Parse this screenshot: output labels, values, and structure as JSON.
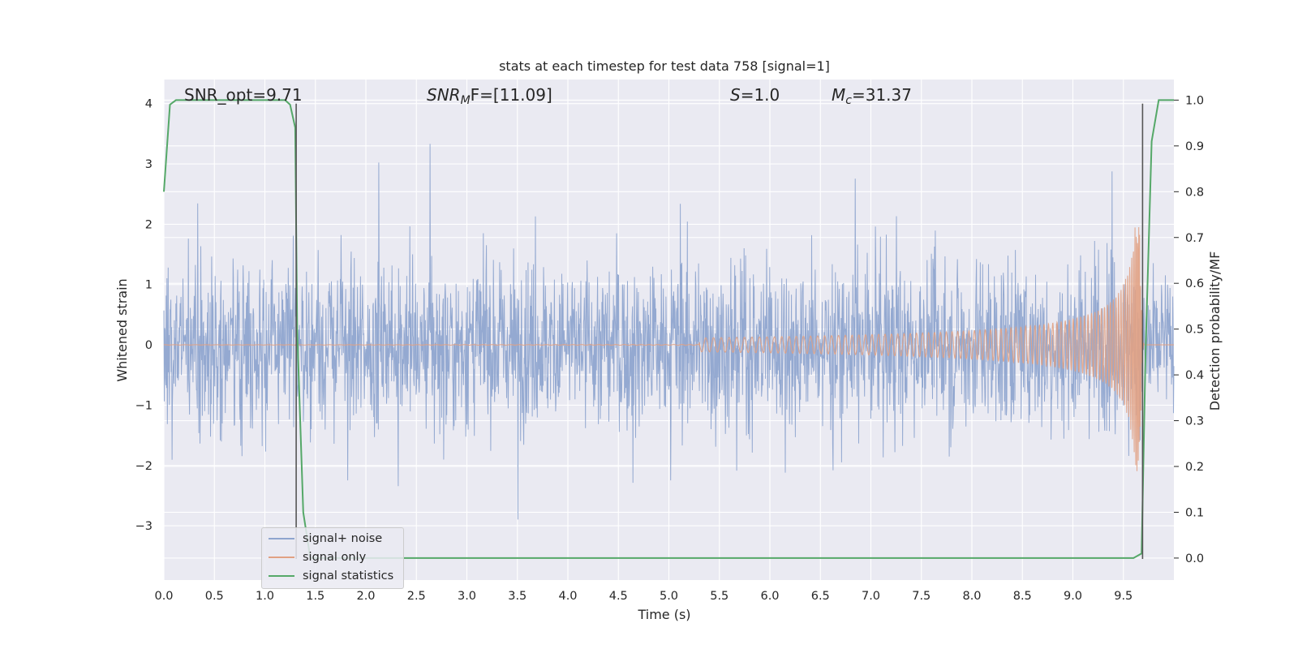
{
  "chart_data": {
    "type": "line",
    "title": "stats at each timestep for test data 758 [signal=1]",
    "xlabel": "Time (s)",
    "ylabel_left": "Whitened strain",
    "ylabel_right": "Detection probability/MF",
    "xlim": [
      0.0,
      10.0
    ],
    "ylim_left": [
      -3.9,
      4.4
    ],
    "ylim_right": [
      -0.048,
      1.045
    ],
    "x_ticks": [
      "0.0",
      "0.5",
      "1.0",
      "1.5",
      "2.0",
      "2.5",
      "3.0",
      "3.5",
      "4.0",
      "4.5",
      "5.0",
      "5.5",
      "6.0",
      "6.5",
      "7.0",
      "7.5",
      "8.0",
      "8.5",
      "9.0",
      "9.5"
    ],
    "y_ticks_left": [
      "4",
      "3",
      "2",
      "1",
      "0",
      "−1",
      "−2",
      "−3"
    ],
    "y_ticks_right": [
      "1.0",
      "0.9",
      "0.8",
      "0.7",
      "0.6",
      "0.5",
      "0.4",
      "0.3",
      "0.2",
      "0.1",
      "0.0"
    ],
    "grid": true,
    "legend_position": "lower-left",
    "annotations": {
      "snr_opt": "SNR_opt=9.71",
      "snr_mf_var": "SNR",
      "snr_mf_sub": "M",
      "snr_mf_tail": "F=[11.09]",
      "s_var": "S",
      "s_tail": "=1.0",
      "mc_var": "M",
      "mc_sub": "c",
      "mc_tail": "=31.37"
    },
    "series": [
      {
        "name": "signal+ noise",
        "color": "#8fa5cf",
        "description_values": "noise band approx ±1.2 with peaks to ±3.4"
      },
      {
        "name": "signal only",
        "color": "#e1a183",
        "note": "chirp growing from 0 near 5.5 s to about ±2.1 at 9.65 s"
      },
      {
        "name": "signal statistics",
        "color": "#55a868",
        "x": [
          0.0,
          0.06,
          0.12,
          0.2,
          0.4,
          0.8,
          1.2,
          1.25,
          1.3,
          1.32,
          1.38,
          1.45,
          2.0,
          5.0,
          9.0,
          9.6,
          9.68,
          9.72,
          9.78,
          9.85,
          10.0
        ],
        "values": [
          0.8,
          0.99,
          1.0,
          1.0,
          1.0,
          1.0,
          1.0,
          0.99,
          0.94,
          0.5,
          0.1,
          0.0,
          0.0,
          0.0,
          0.0,
          0.0,
          0.01,
          0.45,
          0.91,
          1.0,
          1.0
        ]
      }
    ],
    "markers": [
      {
        "name": "detection-marker",
        "x": 1.31
      },
      {
        "name": "detection-marker",
        "x": 9.69
      }
    ]
  },
  "colors": {
    "plot_bg": "#eaeaf2",
    "grid": "#ffffff",
    "noise": "#8fa5cf",
    "signal": "#e1a183",
    "stat": "#55a868",
    "marker": "#555555"
  }
}
